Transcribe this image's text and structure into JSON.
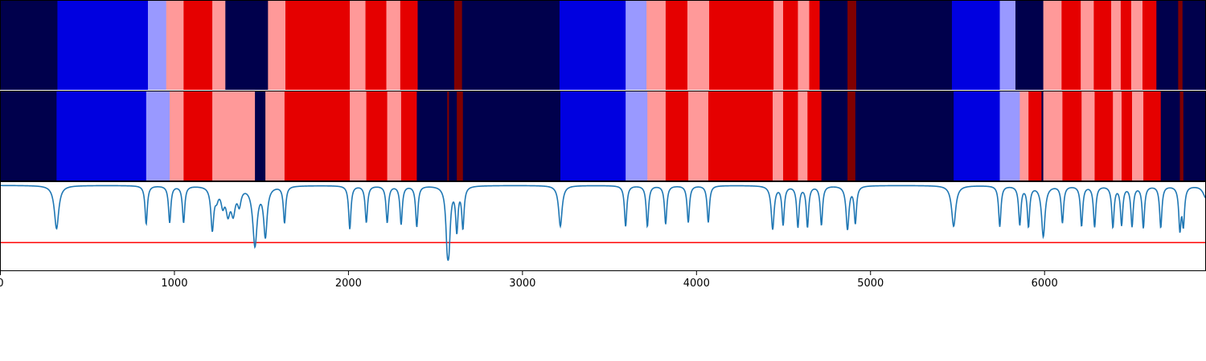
{
  "chart_data": {
    "type": "heatmap",
    "xlim": [
      0,
      6930
    ],
    "x_ticks": [
      {
        "value": 0,
        "label": "0"
      },
      {
        "value": 1000,
        "label": "1000"
      },
      {
        "value": 2000,
        "label": "2000"
      },
      {
        "value": 3000,
        "label": "3000"
      },
      {
        "value": 4000,
        "label": "4000"
      },
      {
        "value": 5000,
        "label": "5000"
      },
      {
        "value": 6000,
        "label": "6000"
      }
    ],
    "palette": {
      "navy": "#00004c",
      "blue": "#0000e0",
      "light_blue": "#9999ff",
      "pink": "#ff9999",
      "red": "#e50000",
      "dark_red": "#800000"
    },
    "tracks": [
      {
        "name": "",
        "segments": [
          [
            0,
            330,
            "navy"
          ],
          [
            330,
            850,
            "blue"
          ],
          [
            850,
            955,
            "light_blue"
          ],
          [
            955,
            1055,
            "pink"
          ],
          [
            1055,
            1220,
            "red"
          ],
          [
            1220,
            1295,
            "pink"
          ],
          [
            1295,
            1540,
            "navy"
          ],
          [
            1540,
            1640,
            "pink"
          ],
          [
            1640,
            2010,
            "red"
          ],
          [
            2010,
            2100,
            "pink"
          ],
          [
            2100,
            2220,
            "red"
          ],
          [
            2220,
            2300,
            "pink"
          ],
          [
            2300,
            2400,
            "red"
          ],
          [
            2400,
            2610,
            "navy"
          ],
          [
            2610,
            2655,
            "dark_red"
          ],
          [
            2655,
            3215,
            "navy"
          ],
          [
            3215,
            3595,
            "blue"
          ],
          [
            3595,
            3715,
            "light_blue"
          ],
          [
            3715,
            3825,
            "pink"
          ],
          [
            3825,
            3950,
            "red"
          ],
          [
            3950,
            4075,
            "pink"
          ],
          [
            4075,
            4445,
            "red"
          ],
          [
            4445,
            4500,
            "pink"
          ],
          [
            4500,
            4585,
            "red"
          ],
          [
            4585,
            4650,
            "pink"
          ],
          [
            4650,
            4710,
            "red"
          ],
          [
            4710,
            4870,
            "navy"
          ],
          [
            4870,
            4920,
            "dark_red"
          ],
          [
            4920,
            5470,
            "navy"
          ],
          [
            5470,
            5745,
            "blue"
          ],
          [
            5745,
            5835,
            "light_blue"
          ],
          [
            5835,
            5995,
            "navy"
          ],
          [
            5995,
            6100,
            "pink"
          ],
          [
            6100,
            6210,
            "red"
          ],
          [
            6210,
            6285,
            "pink"
          ],
          [
            6285,
            6385,
            "red"
          ],
          [
            6385,
            6440,
            "pink"
          ],
          [
            6440,
            6500,
            "red"
          ],
          [
            6500,
            6565,
            "pink"
          ],
          [
            6565,
            6645,
            "red"
          ],
          [
            6645,
            6770,
            "navy"
          ],
          [
            6770,
            6795,
            "dark_red"
          ],
          [
            6795,
            6930,
            "navy"
          ]
        ]
      },
      {
        "name": "",
        "segments": [
          [
            0,
            325,
            "navy"
          ],
          [
            325,
            840,
            "blue"
          ],
          [
            840,
            975,
            "light_blue"
          ],
          [
            975,
            1055,
            "pink"
          ],
          [
            1055,
            1220,
            "red"
          ],
          [
            1220,
            1465,
            "pink"
          ],
          [
            1465,
            1525,
            "navy"
          ],
          [
            1525,
            1635,
            "pink"
          ],
          [
            1635,
            2010,
            "red"
          ],
          [
            2010,
            2105,
            "pink"
          ],
          [
            2105,
            2225,
            "red"
          ],
          [
            2225,
            2305,
            "pink"
          ],
          [
            2305,
            2395,
            "red"
          ],
          [
            2395,
            2570,
            "navy"
          ],
          [
            2570,
            2580,
            "dark_red"
          ],
          [
            2580,
            2625,
            "navy"
          ],
          [
            2625,
            2660,
            "dark_red"
          ],
          [
            2660,
            3220,
            "navy"
          ],
          [
            3220,
            3595,
            "blue"
          ],
          [
            3595,
            3720,
            "light_blue"
          ],
          [
            3720,
            3825,
            "pink"
          ],
          [
            3825,
            3955,
            "red"
          ],
          [
            3955,
            4070,
            "pink"
          ],
          [
            4070,
            4440,
            "red"
          ],
          [
            4440,
            4500,
            "pink"
          ],
          [
            4500,
            4585,
            "red"
          ],
          [
            4585,
            4640,
            "pink"
          ],
          [
            4640,
            4720,
            "red"
          ],
          [
            4720,
            4870,
            "navy"
          ],
          [
            4870,
            4915,
            "dark_red"
          ],
          [
            4915,
            5480,
            "navy"
          ],
          [
            5480,
            5745,
            "blue"
          ],
          [
            5745,
            5860,
            "light_blue"
          ],
          [
            5860,
            5910,
            "pink"
          ],
          [
            5910,
            5985,
            "red"
          ],
          [
            5985,
            5995,
            "navy"
          ],
          [
            5995,
            6105,
            "pink"
          ],
          [
            6105,
            6215,
            "red"
          ],
          [
            6215,
            6290,
            "pink"
          ],
          [
            6290,
            6395,
            "red"
          ],
          [
            6395,
            6445,
            "pink"
          ],
          [
            6445,
            6505,
            "red"
          ],
          [
            6505,
            6570,
            "pink"
          ],
          [
            6570,
            6670,
            "red"
          ],
          [
            6670,
            6780,
            "navy"
          ],
          [
            6780,
            6800,
            "dark_red"
          ],
          [
            6800,
            6930,
            "navy"
          ]
        ]
      }
    ],
    "signal": {
      "color": "#1f77b4",
      "baseline": 0.0,
      "ylim": [
        -1.05,
        0.05
      ],
      "threshold": -0.7,
      "threshold_color": "#ff0000",
      "dips": [
        [
          325,
          0.53,
          15
        ],
        [
          840,
          0.47,
          8
        ],
        [
          975,
          0.45,
          8
        ],
        [
          1055,
          0.45,
          8
        ],
        [
          1220,
          0.52,
          10
        ],
        [
          1245,
          0.12,
          12
        ],
        [
          1280,
          0.2,
          12
        ],
        [
          1310,
          0.3,
          14
        ],
        [
          1340,
          0.3,
          14
        ],
        [
          1375,
          0.2,
          12
        ],
        [
          1465,
          0.72,
          15
        ],
        [
          1525,
          0.6,
          12
        ],
        [
          1635,
          0.45,
          8
        ],
        [
          2010,
          0.53,
          8
        ],
        [
          2105,
          0.45,
          8
        ],
        [
          2225,
          0.45,
          8
        ],
        [
          2305,
          0.47,
          8
        ],
        [
          2395,
          0.5,
          8
        ],
        [
          2570,
          0.57,
          10
        ],
        [
          2580,
          0.55,
          10
        ],
        [
          2625,
          0.53,
          8
        ],
        [
          2660,
          0.5,
          8
        ],
        [
          3220,
          0.5,
          12
        ],
        [
          3595,
          0.5,
          8
        ],
        [
          3720,
          0.5,
          8
        ],
        [
          3825,
          0.47,
          8
        ],
        [
          3955,
          0.45,
          8
        ],
        [
          4070,
          0.45,
          8
        ],
        [
          4440,
          0.53,
          10
        ],
        [
          4500,
          0.47,
          8
        ],
        [
          4585,
          0.5,
          8
        ],
        [
          4640,
          0.5,
          8
        ],
        [
          4720,
          0.48,
          8
        ],
        [
          4870,
          0.53,
          10
        ],
        [
          4915,
          0.45,
          8
        ],
        [
          5480,
          0.5,
          14
        ],
        [
          5745,
          0.5,
          8
        ],
        [
          5860,
          0.47,
          8
        ],
        [
          5910,
          0.49,
          8
        ],
        [
          5995,
          0.62,
          12
        ],
        [
          6105,
          0.45,
          8
        ],
        [
          6215,
          0.49,
          8
        ],
        [
          6290,
          0.5,
          8
        ],
        [
          6395,
          0.5,
          8
        ],
        [
          6445,
          0.47,
          8
        ],
        [
          6505,
          0.49,
          8
        ],
        [
          6570,
          0.51,
          8
        ],
        [
          6670,
          0.51,
          8
        ],
        [
          6780,
          0.51,
          8
        ],
        [
          6800,
          0.45,
          8
        ],
        [
          6930,
          0.15,
          20
        ]
      ]
    }
  }
}
